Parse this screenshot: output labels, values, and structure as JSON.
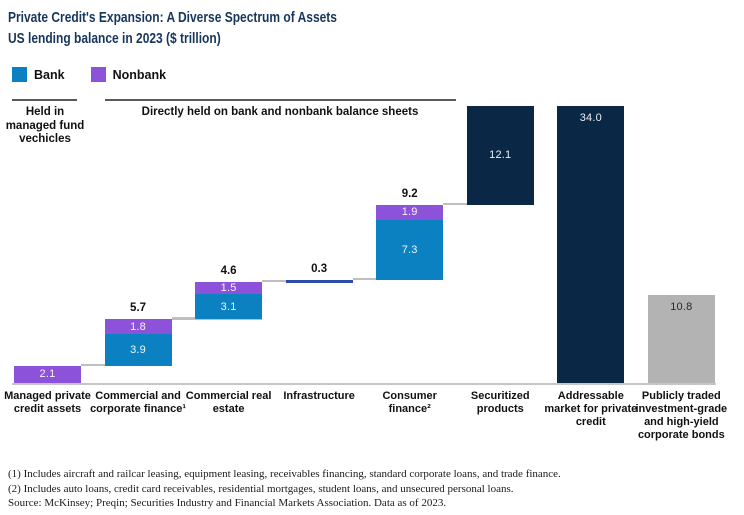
{
  "header": {
    "title": "Private Credit's Expansion: A Diverse Spectrum of Assets",
    "subtitle": "US lending balance in 2023 ($ trillion)"
  },
  "legend": {
    "items": [
      {
        "label": "Bank",
        "color_key": "bank"
      },
      {
        "label": "Nonbank",
        "color_key": "nonbank"
      }
    ]
  },
  "group_headers": [
    {
      "label": "Held in managed fund vechicles"
    },
    {
      "label": "Directly held on bank and nonbank balance sheets"
    }
  ],
  "colors": {
    "bank": "#0b81c2",
    "nonbank": "#8c52da",
    "navy": "#0a2845",
    "neutral_gray": "#b3b3b3",
    "infrastructure_blend": "#2f4ba8",
    "connector": "#bfbfbf",
    "title_navy": "#17365c"
  },
  "chart_data": {
    "type": "bar",
    "subtype": "stacked-waterfall",
    "title": "US lending balance in 2023",
    "unit": "$ trillion",
    "ylim": [
      0,
      34
    ],
    "legend_position": "top-left",
    "categories": [
      "Managed private credit assets",
      "Commercial and corporate finance¹",
      "Commercial real estate",
      "Infrastructure",
      "Consumer finance²",
      "Securitized products",
      "Addressable market for private credit",
      "Publicly traded investment-grade and high-yield corporate bonds"
    ],
    "bars": [
      {
        "start": 0,
        "total": 2.1,
        "total_label": "",
        "segments": [
          {
            "series": "Nonbank",
            "value": 2.1,
            "label": "2.1",
            "color_key": "nonbank"
          }
        ]
      },
      {
        "start": 2.1,
        "total": 5.7,
        "total_label": "5.7",
        "segments": [
          {
            "series": "Bank",
            "value": 3.9,
            "label": "3.9",
            "color_key": "bank"
          },
          {
            "series": "Nonbank",
            "value": 1.8,
            "label": "1.8",
            "color_key": "nonbank"
          }
        ]
      },
      {
        "start": 7.8,
        "total": 4.6,
        "total_label": "4.6",
        "segments": [
          {
            "series": "Bank",
            "value": 3.1,
            "label": "3.1",
            "color_key": "bank"
          },
          {
            "series": "Nonbank",
            "value": 1.5,
            "label": "1.5",
            "color_key": "nonbank"
          }
        ]
      },
      {
        "start": 12.4,
        "total": 0.3,
        "total_label": "0.3",
        "segments": [
          {
            "series": "Bank + Nonbank",
            "value": 0.3,
            "label": "",
            "color_key": "infrastructure_blend"
          }
        ]
      },
      {
        "start": 12.7,
        "total": 9.2,
        "total_label": "9.2",
        "segments": [
          {
            "series": "Bank",
            "value": 7.3,
            "label": "7.3",
            "color_key": "bank"
          },
          {
            "series": "Nonbank",
            "value": 1.9,
            "label": "1.9",
            "color_key": "nonbank"
          }
        ]
      },
      {
        "start": 21.9,
        "total": 12.1,
        "total_label": "",
        "segments": [
          {
            "series": "Total",
            "value": 12.1,
            "label": "12.1",
            "color_key": "navy"
          }
        ]
      },
      {
        "start": 0,
        "total": 34.0,
        "total_label": "",
        "segments": [
          {
            "series": "Total",
            "value": 34.0,
            "label": "34.0",
            "color_key": "navy",
            "label_pos": "top"
          }
        ]
      },
      {
        "start": 0,
        "total": 10.8,
        "total_label": "",
        "segments": [
          {
            "series": "Total",
            "value": 10.8,
            "label": "10.8",
            "color_key": "neutral_gray",
            "label_pos": "top",
            "label_dark": true
          }
        ]
      }
    ],
    "connectors_after": [
      0,
      1,
      2,
      3,
      4
    ]
  },
  "footnotes": [
    "(1) Includes aircraft and railcar leasing, equipment leasing, receivables financing, standard corporate loans, and trade finance.",
    "(2) Includes auto loans, credit card receivables, residential mortgages, student loans, and unsecured personal loans.",
    "Source: McKinsey; Preqin; Securities Industry and Financial Markets Association. Data as of 2023."
  ]
}
